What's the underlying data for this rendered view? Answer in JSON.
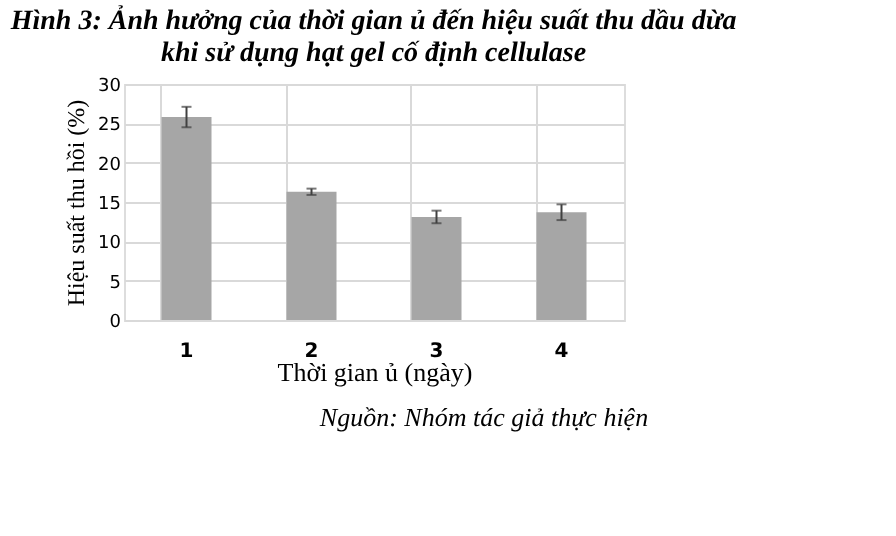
{
  "chart_data": {
    "type": "bar",
    "title": [
      "Hình 3: Ảnh hưởng của thời gian ủ đến hiệu suất thu dầu dừa",
      "khi sử dụng hạt gel cố định cellulase"
    ],
    "xlabel": "Thời gian ủ (ngày)",
    "ylabel": "Hiệu suất thu hồi (%)",
    "categories": [
      "1",
      "2",
      "3",
      "4"
    ],
    "values": [
      25.8,
      16.3,
      13.1,
      13.7
    ],
    "errors": [
      1.3,
      0.4,
      0.8,
      1.0
    ],
    "color": "#a6a6a6",
    "ylim": [
      0,
      30
    ],
    "yticks": [
      0,
      5,
      10,
      15,
      20,
      25,
      30
    ],
    "grid": true,
    "annotations": [
      "Nguồn: Nhóm tác giả thực hiện"
    ]
  }
}
